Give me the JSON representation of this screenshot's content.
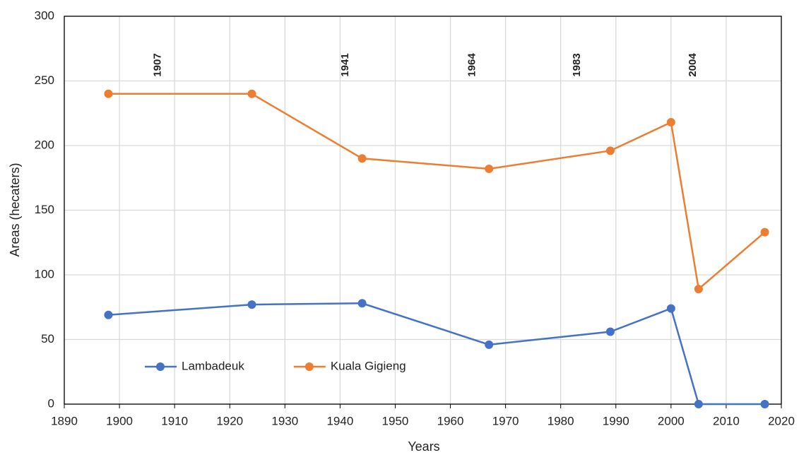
{
  "chart_data": {
    "type": "line",
    "x_label": "Years",
    "y_label": "Areas (hecaters)",
    "x": [
      1898,
      1924,
      1944,
      1967,
      1989,
      2000,
      2005,
      2017
    ],
    "series": [
      {
        "name": "Lambadeuk",
        "color": "#4472c4",
        "values": [
          69,
          77,
          78,
          46,
          56,
          74,
          0,
          0
        ]
      },
      {
        "name": "Kuala Gigieng",
        "color": "#ed7d31",
        "values": [
          240,
          240,
          190,
          182,
          196,
          218,
          89,
          133
        ]
      }
    ],
    "annotations": [
      "1907",
      "1941",
      "1964",
      "1983",
      "2004"
    ],
    "xlim": [
      1890,
      2020
    ],
    "xticks": [
      1890,
      1900,
      1910,
      1920,
      1930,
      1940,
      1950,
      1960,
      1970,
      1980,
      1990,
      2000,
      2010,
      2020
    ],
    "ylim": [
      0,
      300
    ],
    "yticks": [
      0,
      50,
      100,
      150,
      200,
      250,
      300
    ],
    "grid": true,
    "legend": "lower left"
  }
}
